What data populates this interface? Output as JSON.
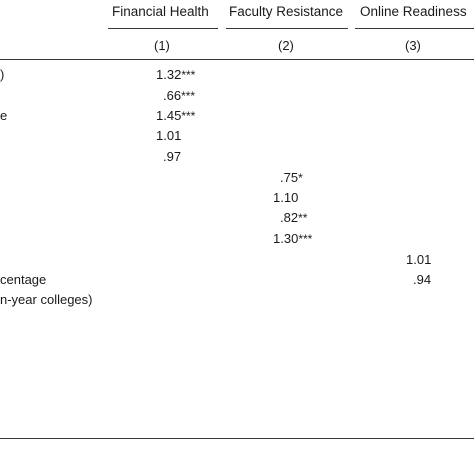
{
  "table": {
    "headers": [
      "Financial Health",
      "Faculty Resistance",
      "Online Readiness"
    ],
    "col_numbers": [
      "(1)",
      "(2)",
      "(3)"
    ],
    "row_labels": [
      "",
      "",
      "e",
      "",
      "",
      "",
      "",
      "",
      "",
      "",
      "centage",
      "n-year colleges)"
    ],
    "row_label_first": ")",
    "cells": [
      {
        "value": "1.32",
        "stars": "***"
      },
      {
        "value": ".66",
        "stars": "***"
      },
      {
        "value": "1.45",
        "stars": "***"
      },
      {
        "value": "1.01",
        "stars": ""
      },
      {
        "value": ".97",
        "stars": ""
      },
      {
        "value": ".75",
        "stars": "*"
      },
      {
        "value": "1.10",
        "stars": ""
      },
      {
        "value": ".82",
        "stars": "**"
      },
      {
        "value": "1.30",
        "stars": "***"
      },
      {
        "value": "1.01",
        "stars": ""
      },
      {
        "value": ".94",
        "stars": ""
      }
    ]
  }
}
